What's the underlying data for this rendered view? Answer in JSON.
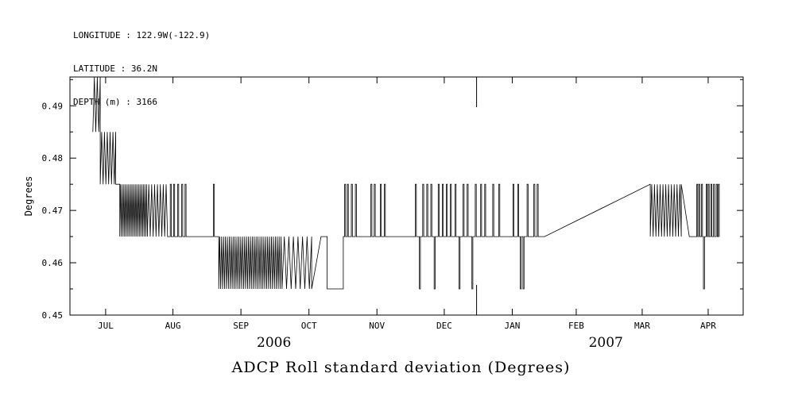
{
  "header": {
    "line1": "LONGITUDE : 122.9W(-122.9)",
    "line2": "LATITUDE : 36.2N",
    "line3": "DEPTH (m) : 3166"
  },
  "chart_data": {
    "type": "line",
    "title": "ADCP Roll standard deviation (Degrees)",
    "ylabel": "Degrees",
    "ylim": [
      0.45,
      0.4955
    ],
    "yticks": [
      0.45,
      0.46,
      0.47,
      0.48,
      0.49
    ],
    "ytick_labels": [
      "0.45",
      "0.46",
      "0.47",
      "0.48",
      "0.49"
    ],
    "yticks_minor": [
      0.455,
      0.465,
      0.475,
      0.485,
      0.495
    ],
    "line_color": "#000000",
    "grid": false,
    "months": [
      {
        "label": "JUL",
        "f": 0.053
      },
      {
        "label": "AUG",
        "f": 0.153
      },
      {
        "label": "SEP",
        "f": 0.254
      },
      {
        "label": "OCT",
        "f": 0.355
      },
      {
        "label": "NOV",
        "f": 0.456
      },
      {
        "label": "DEC",
        "f": 0.556
      },
      {
        "label": "JAN",
        "f": 0.657
      },
      {
        "label": "FEB",
        "f": 0.752
      },
      {
        "label": "MAR",
        "f": 0.85
      },
      {
        "label": "APR",
        "f": 0.948
      }
    ],
    "years": [
      {
        "label": "2006",
        "f": 0.303
      },
      {
        "label": "2007",
        "f": 0.796
      }
    ],
    "year_boundary_f": 0.604,
    "segments": [
      {
        "t": "osc",
        "x0": 0.034,
        "x1": 0.045,
        "lo": 0.485,
        "hi": 0.4955,
        "n": 5
      },
      {
        "t": "osc",
        "x0": 0.045,
        "x1": 0.068,
        "lo": 0.475,
        "hi": 0.485,
        "n": 11
      },
      {
        "t": "flat",
        "x0": 0.068,
        "x1": 0.074,
        "y": 0.475
      },
      {
        "t": "osc",
        "x0": 0.074,
        "x1": 0.115,
        "lo": 0.465,
        "hi": 0.475,
        "n": 34
      },
      {
        "t": "osc",
        "x0": 0.115,
        "x1": 0.145,
        "lo": 0.465,
        "hi": 0.475,
        "n": 14
      },
      {
        "t": "spikes",
        "x0": 0.145,
        "x1": 0.175,
        "base": 0.465,
        "at": [
          [
            0.149,
            0.475
          ],
          [
            0.154,
            0.475
          ],
          [
            0.16,
            0.475
          ],
          [
            0.166,
            0.475
          ],
          [
            0.171,
            0.475
          ]
        ]
      },
      {
        "t": "flat",
        "x0": 0.175,
        "x1": 0.211,
        "y": 0.465
      },
      {
        "t": "spikes",
        "x0": 0.211,
        "x1": 0.221,
        "base": 0.465,
        "at": [
          [
            0.213,
            0.475
          ]
        ]
      },
      {
        "t": "osc",
        "x0": 0.221,
        "x1": 0.315,
        "lo": 0.455,
        "hi": 0.465,
        "n": 66
      },
      {
        "t": "osc",
        "x0": 0.315,
        "x1": 0.359,
        "lo": 0.455,
        "hi": 0.465,
        "n": 13
      },
      {
        "t": "line",
        "x0": 0.359,
        "y0": 0.455,
        "x1": 0.373,
        "y1": 0.465
      },
      {
        "t": "flat",
        "x0": 0.373,
        "x1": 0.382,
        "y": 0.465
      },
      {
        "t": "flat",
        "x0": 0.382,
        "x1": 0.406,
        "y": 0.455
      },
      {
        "t": "spikes",
        "x0": 0.406,
        "x1": 0.429,
        "base": 0.465,
        "at": [
          [
            0.408,
            0.475
          ],
          [
            0.412,
            0.475
          ],
          [
            0.418,
            0.475
          ],
          [
            0.424,
            0.475
          ]
        ]
      },
      {
        "t": "flat",
        "x0": 0.429,
        "x1": 0.445,
        "y": 0.465
      },
      {
        "t": "spikes",
        "x0": 0.445,
        "x1": 0.471,
        "base": 0.465,
        "at": [
          [
            0.447,
            0.475
          ],
          [
            0.452,
            0.475
          ],
          [
            0.461,
            0.475
          ],
          [
            0.467,
            0.475
          ]
        ]
      },
      {
        "t": "flat",
        "x0": 0.471,
        "x1": 0.51,
        "y": 0.465
      },
      {
        "t": "spikes",
        "x0": 0.51,
        "x1": 0.606,
        "base": 0.465,
        "at": [
          [
            0.513,
            0.475
          ],
          [
            0.519,
            0.455
          ],
          [
            0.524,
            0.475
          ],
          [
            0.53,
            0.475
          ],
          [
            0.536,
            0.475
          ],
          [
            0.541,
            0.455
          ],
          [
            0.547,
            0.475
          ],
          [
            0.553,
            0.475
          ],
          [
            0.559,
            0.475
          ],
          [
            0.565,
            0.475
          ],
          [
            0.572,
            0.475
          ],
          [
            0.578,
            0.455
          ],
          [
            0.584,
            0.475
          ],
          [
            0.59,
            0.475
          ],
          [
            0.597,
            0.455
          ],
          [
            0.602,
            0.475
          ]
        ]
      },
      {
        "t": "spikes",
        "x0": 0.606,
        "x1": 0.7,
        "base": 0.465,
        "at": [
          [
            0.61,
            0.475
          ],
          [
            0.616,
            0.475
          ],
          [
            0.628,
            0.475
          ],
          [
            0.637,
            0.475
          ],
          [
            0.658,
            0.475
          ],
          [
            0.665,
            0.475
          ],
          [
            0.669,
            0.455
          ],
          [
            0.673,
            0.455
          ],
          [
            0.679,
            0.475
          ],
          [
            0.689,
            0.475
          ],
          [
            0.694,
            0.475
          ]
        ]
      },
      {
        "t": "line",
        "x0": 0.705,
        "y0": 0.465,
        "x1": 0.862,
        "y1": 0.475
      },
      {
        "t": "osc",
        "x0": 0.862,
        "x1": 0.908,
        "lo": 0.465,
        "hi": 0.475,
        "n": 22
      },
      {
        "t": "line",
        "x0": 0.908,
        "y0": 0.475,
        "x1": 0.92,
        "y1": 0.465
      },
      {
        "t": "flat",
        "x0": 0.92,
        "x1": 0.929,
        "y": 0.465
      },
      {
        "t": "spikes",
        "x0": 0.929,
        "x1": 0.964,
        "base": 0.465,
        "at": [
          [
            0.931,
            0.475
          ],
          [
            0.934,
            0.475
          ],
          [
            0.938,
            0.475
          ],
          [
            0.941,
            0.455
          ],
          [
            0.945,
            0.475
          ],
          [
            0.948,
            0.475
          ],
          [
            0.952,
            0.475
          ],
          [
            0.956,
            0.475
          ],
          [
            0.96,
            0.475
          ],
          [
            0.963,
            0.475
          ]
        ]
      }
    ]
  }
}
